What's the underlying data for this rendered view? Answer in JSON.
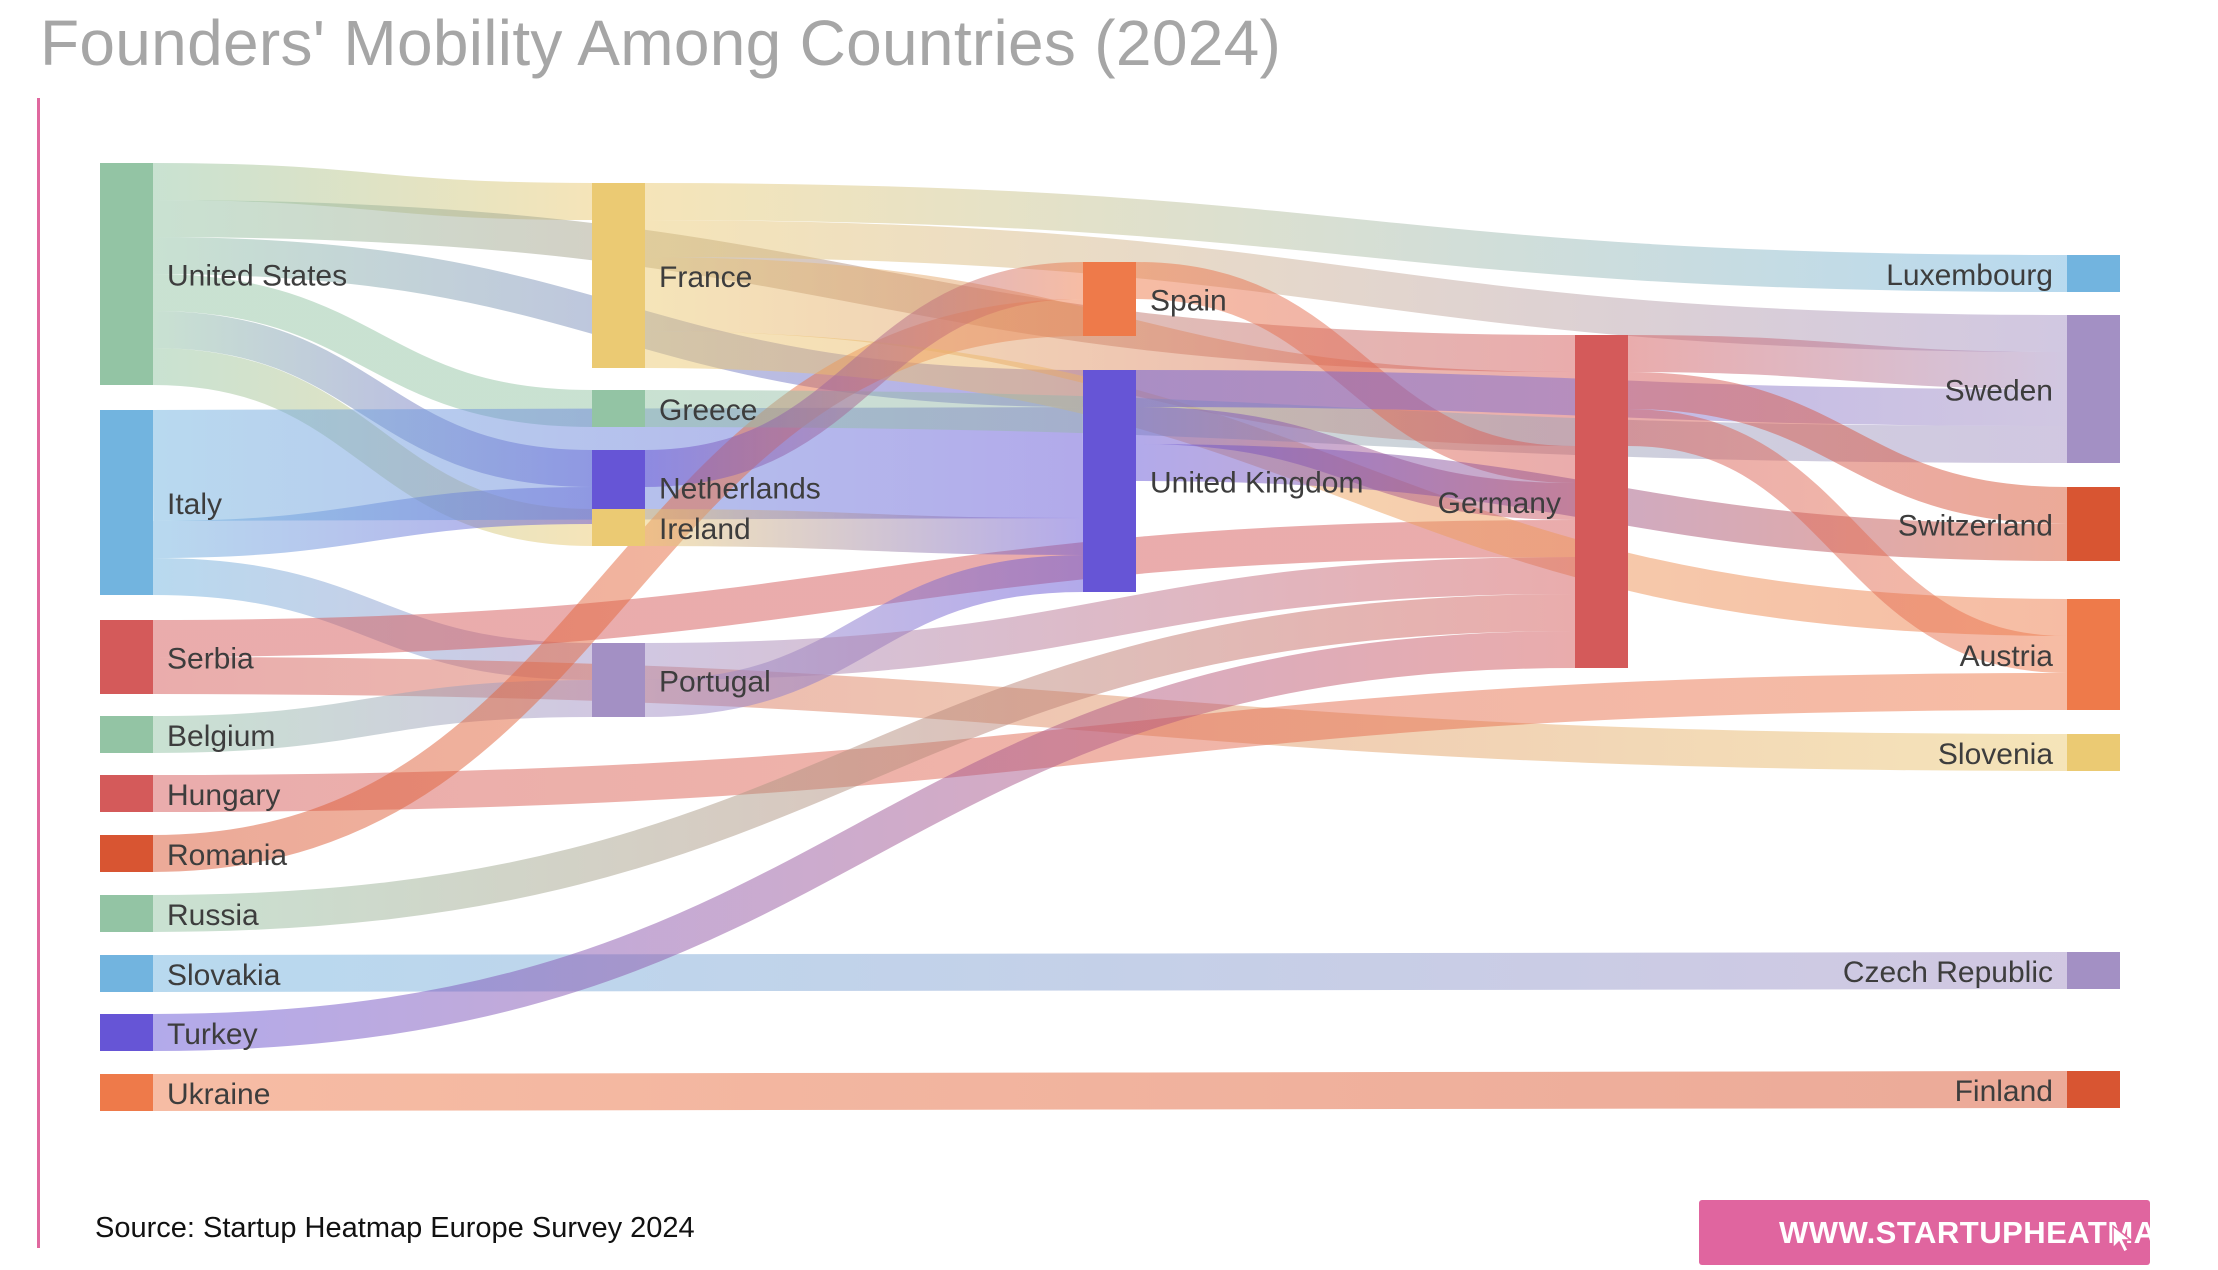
{
  "title": "Founders' Mobility Among Countries (2024)",
  "source": "Source: Startup Heatmap Europe Survey 2024",
  "website_button": "WWW.STARTUPHEATMAP.EU",
  "chart_data": {
    "type": "sankey",
    "title": "Founders' Mobility Among Countries (2024)",
    "nodes": [
      {
        "id": "United States",
        "color": "#93c4a4"
      },
      {
        "id": "Italy",
        "color": "#72b4df"
      },
      {
        "id": "Serbia",
        "color": "#d45a5a"
      },
      {
        "id": "Belgium",
        "color": "#93c4a4"
      },
      {
        "id": "Hungary",
        "color": "#d45a5a"
      },
      {
        "id": "Romania",
        "color": "#d85532"
      },
      {
        "id": "Russia",
        "color": "#93c4a4"
      },
      {
        "id": "Slovakia",
        "color": "#72b4df"
      },
      {
        "id": "Turkey",
        "color": "#6655d6"
      },
      {
        "id": "Ukraine",
        "color": "#ee7a4a"
      },
      {
        "id": "France",
        "color": "#ebca73"
      },
      {
        "id": "Greece",
        "color": "#93c4a4"
      },
      {
        "id": "Netherlands",
        "color": "#6655d6"
      },
      {
        "id": "Ireland",
        "color": "#ebca73"
      },
      {
        "id": "Portugal",
        "color": "#a390c4"
      },
      {
        "id": "Spain",
        "color": "#ee7a4a"
      },
      {
        "id": "United Kingdom",
        "color": "#6655d6"
      },
      {
        "id": "Germany",
        "color": "#d45a5a"
      },
      {
        "id": "Luxembourg",
        "color": "#72b4df"
      },
      {
        "id": "Sweden",
        "color": "#a390c4"
      },
      {
        "id": "Switzerland",
        "color": "#d85532"
      },
      {
        "id": "Austria",
        "color": "#ee7a4a"
      },
      {
        "id": "Slovenia",
        "color": "#ebca73"
      },
      {
        "id": "Czech Republic",
        "color": "#a390c4"
      },
      {
        "id": "Finland",
        "color": "#d85532"
      }
    ],
    "links": [
      {
        "source": "United States",
        "target": "France",
        "value": 1
      },
      {
        "source": "United States",
        "target": "Germany",
        "value": 1
      },
      {
        "source": "United States",
        "target": "Greece",
        "value": 1
      },
      {
        "source": "United States",
        "target": "Netherlands",
        "value": 1
      },
      {
        "source": "United States",
        "target": "Ireland",
        "value": 1
      },
      {
        "source": "United States",
        "target": "United Kingdom",
        "value": 1
      },
      {
        "source": "Italy",
        "target": "Portugal",
        "value": 1
      },
      {
        "source": "Italy",
        "target": "Netherlands",
        "value": 1
      },
      {
        "source": "Italy",
        "target": "United Kingdom",
        "value": 3
      },
      {
        "source": "Serbia",
        "target": "Germany",
        "value": 1
      },
      {
        "source": "Serbia",
        "target": "Slovenia",
        "value": 1
      },
      {
        "source": "Belgium",
        "target": "Portugal",
        "value": 1
      },
      {
        "source": "Hungary",
        "target": "Austria",
        "value": 1
      },
      {
        "source": "Romania",
        "target": "Spain",
        "value": 1
      },
      {
        "source": "Russia",
        "target": "Germany",
        "value": 1
      },
      {
        "source": "Slovakia",
        "target": "Czech Republic",
        "value": 1
      },
      {
        "source": "Turkey",
        "target": "Germany",
        "value": 1
      },
      {
        "source": "Ukraine",
        "target": "Finland",
        "value": 1
      },
      {
        "source": "France",
        "target": "Germany",
        "value": 2
      },
      {
        "source": "France",
        "target": "Luxembourg",
        "value": 1
      },
      {
        "source": "France",
        "target": "Sweden",
        "value": 1
      },
      {
        "source": "France",
        "target": "Austria",
        "value": 1
      },
      {
        "source": "Greece",
        "target": "Sweden",
        "value": 1
      },
      {
        "source": "Netherlands",
        "target": "Spain",
        "value": 1
      },
      {
        "source": "Ireland",
        "target": "United Kingdom",
        "value": 1
      },
      {
        "source": "Portugal",
        "target": "United Kingdom",
        "value": 1
      },
      {
        "source": "Portugal",
        "target": "Germany",
        "value": 1
      },
      {
        "source": "Spain",
        "target": "Germany",
        "value": 1
      },
      {
        "source": "United Kingdom",
        "target": "Sweden",
        "value": 1
      },
      {
        "source": "United Kingdom",
        "target": "Germany",
        "value": 1
      },
      {
        "source": "United Kingdom",
        "target": "Switzerland",
        "value": 1
      },
      {
        "source": "Germany",
        "target": "Sweden",
        "value": 1
      },
      {
        "source": "Germany",
        "target": "Switzerland",
        "value": 1
      },
      {
        "source": "Germany",
        "target": "Austria",
        "value": 1
      }
    ]
  }
}
